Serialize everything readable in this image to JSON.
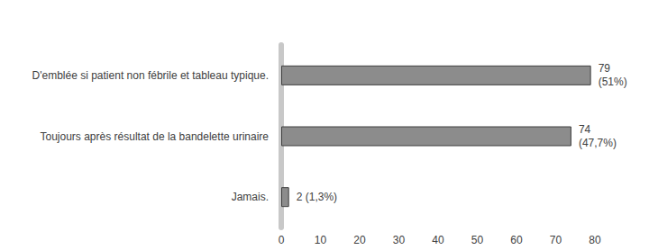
{
  "chart_data": {
    "type": "bar",
    "orientation": "horizontal",
    "categories": [
      "D'emblée si patient non fébrile et tableau typique.",
      "Toujours après résultat de la bandelette urinaire",
      "Jamais."
    ],
    "values": [
      79,
      74,
      2
    ],
    "value_labels": [
      "79\n(51%)",
      "74\n(47,7%)",
      "2 (1,3%)"
    ],
    "color": "#8c8c8c",
    "xlim": [
      0,
      80
    ],
    "xticks": [
      0,
      10,
      20,
      30,
      40,
      50,
      60,
      70,
      80
    ],
    "grid": false,
    "data_labels": true
  }
}
